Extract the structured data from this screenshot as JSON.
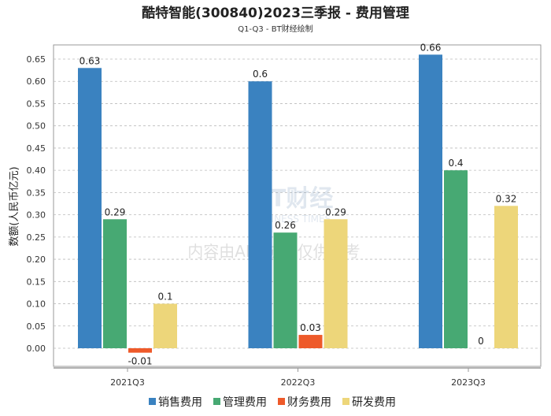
{
  "chart_data": {
    "type": "bar",
    "title": "酷特智能(300840)2023三季报 - 费用管理",
    "subtitle": "Q1-Q3 - BT财经绘制",
    "xlabel": "",
    "ylabel": "数额(人民币亿元)",
    "ylim": [
      -0.04,
      0.69
    ],
    "yticks": [
      "0.00",
      "0.05",
      "0.10",
      "0.15",
      "0.20",
      "0.25",
      "0.30",
      "0.35",
      "0.40",
      "0.45",
      "0.50",
      "0.55",
      "0.60",
      "0.65"
    ],
    "grid": true,
    "legend_placement": "bottom",
    "categories": [
      "2021Q3",
      "2022Q3",
      "2023Q3"
    ],
    "series": [
      {
        "name": "销售费用",
        "color": "#3a82c0",
        "values": [
          0.63,
          0.6,
          0.66
        ],
        "labels": [
          "0.63",
          "0.6",
          "0.66"
        ]
      },
      {
        "name": "管理费用",
        "color": "#47a973",
        "values": [
          0.29,
          0.26,
          0.4
        ],
        "labels": [
          "0.29",
          "0.26",
          "0.4"
        ]
      },
      {
        "name": "财务费用",
        "color": "#ee5a2a",
        "values": [
          -0.01,
          0.03,
          0
        ],
        "labels": [
          "-0.01",
          "0.03",
          "0"
        ]
      },
      {
        "name": "研发费用",
        "color": "#edd67a",
        "values": [
          0.1,
          0.29,
          0.32
        ],
        "labels": [
          "0.1",
          "0.29",
          "0.32"
        ]
      }
    ]
  },
  "watermark": {
    "logo": "BT财经",
    "logo_sub": "BUSINESS TIMES",
    "notice": "内容由AI生成，仅供参考"
  }
}
